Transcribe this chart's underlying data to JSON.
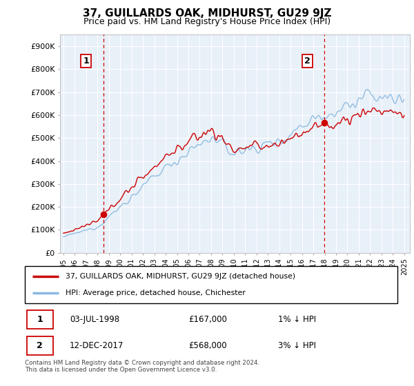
{
  "title": "37, GUILLARDS OAK, MIDHURST, GU29 9JZ",
  "subtitle": "Price paid vs. HM Land Registry's House Price Index (HPI)",
  "ylabel_ticks": [
    "£0",
    "£100K",
    "£200K",
    "£300K",
    "£400K",
    "£500K",
    "£600K",
    "£700K",
    "£800K",
    "£900K"
  ],
  "ytick_values": [
    0,
    100000,
    200000,
    300000,
    400000,
    500000,
    600000,
    700000,
    800000,
    900000
  ],
  "ylim": [
    0,
    950000
  ],
  "xlim_start": 1994.7,
  "xlim_end": 2025.5,
  "sale1": {
    "date_num": 1998.5,
    "price": 167000,
    "label": "1"
  },
  "sale2": {
    "date_num": 2017.95,
    "price": 568000,
    "label": "2"
  },
  "legend_line1": "37, GUILLARDS OAK, MIDHURST, GU29 9JZ (detached house)",
  "legend_line2": "HPI: Average price, detached house, Chichester",
  "footer": "Contains HM Land Registry data © Crown copyright and database right 2024.\nThis data is licensed under the Open Government Licence v3.0.",
  "line_color_red": "#cc0000",
  "line_color_blue": "#88b8e0",
  "plot_bg_color": "#e8f0f8",
  "bg_color": "#ffffff",
  "grid_color": "#ffffff",
  "annotation_color": "#cc0000",
  "title_fontsize": 11,
  "subtitle_fontsize": 9
}
